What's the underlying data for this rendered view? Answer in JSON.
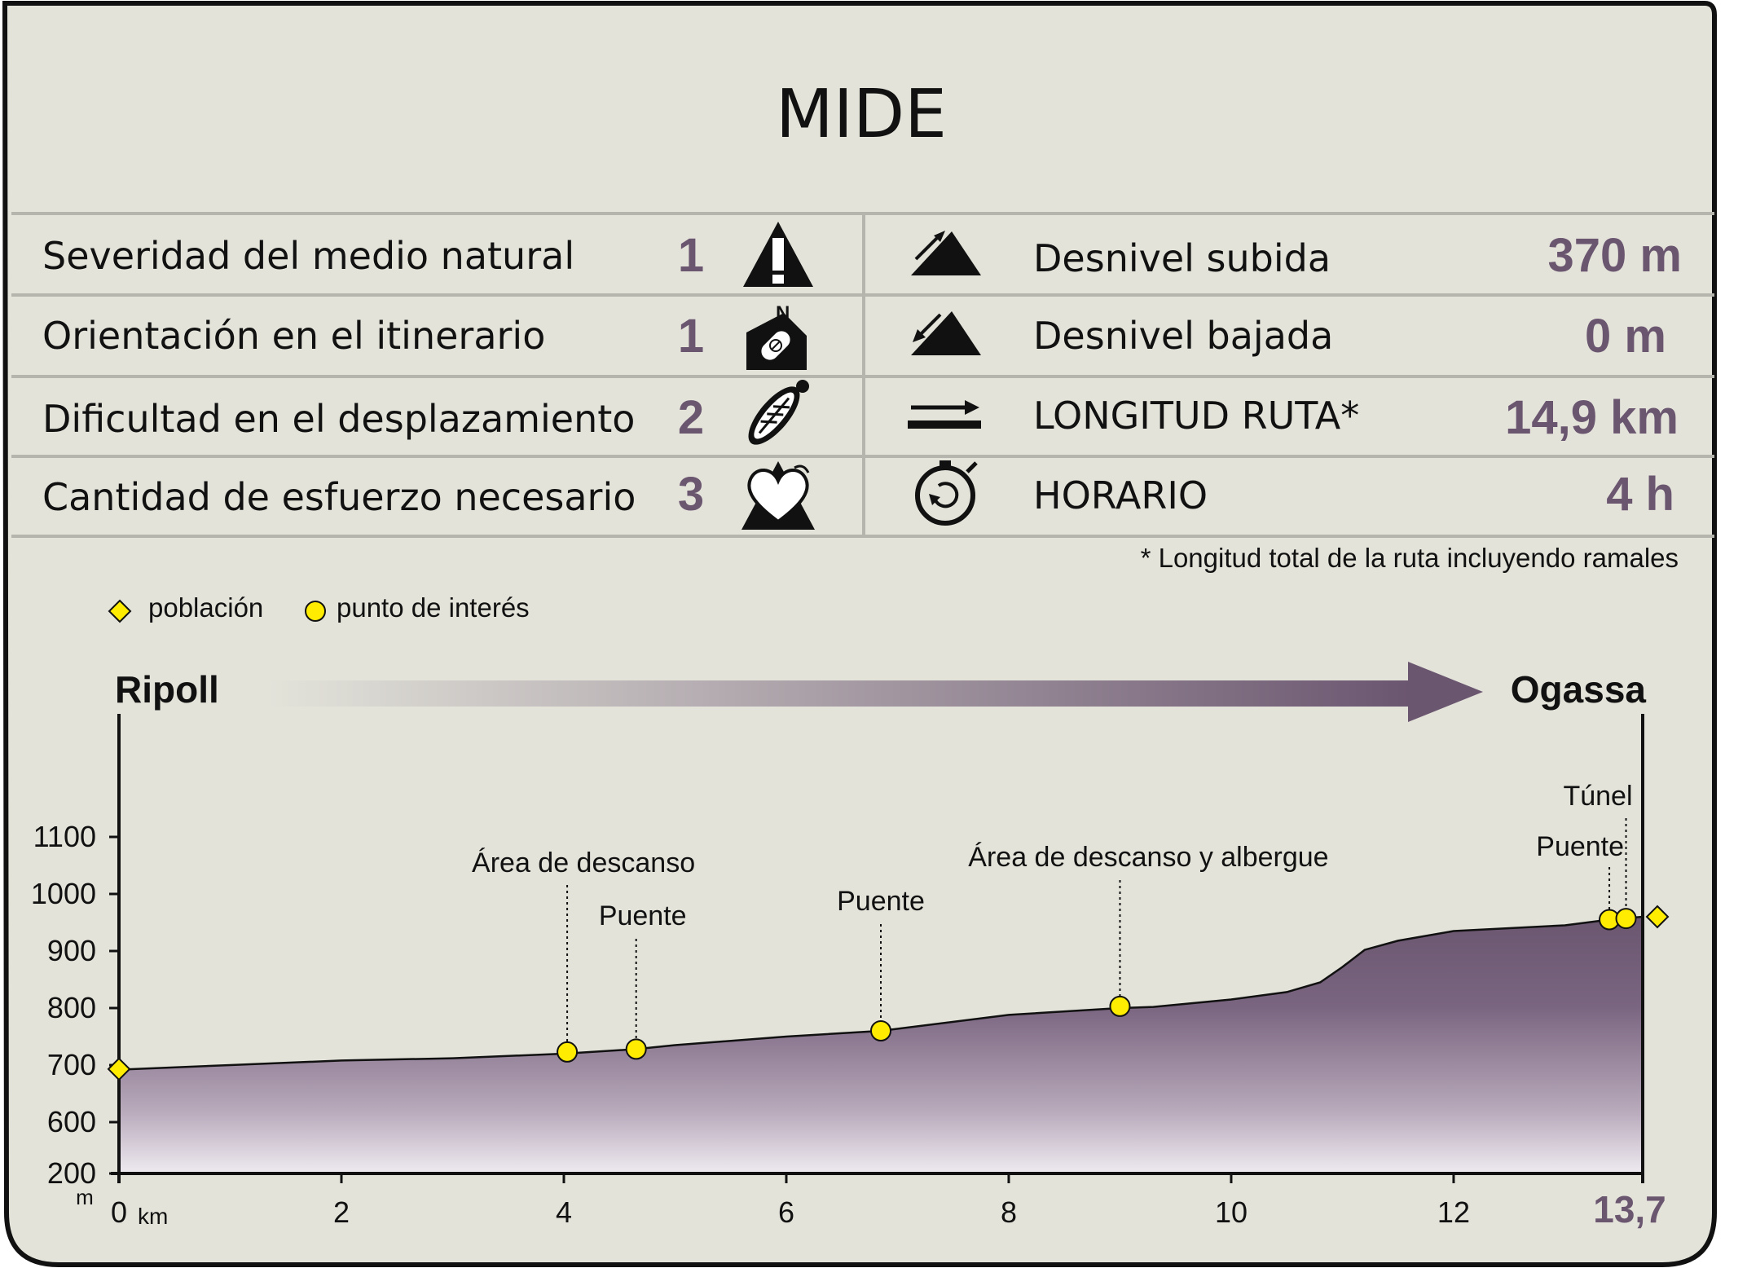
{
  "title": "MIDE",
  "mide": [
    {
      "label": "Severidad del medio natural",
      "value": "1",
      "icon": "alert-mountain-icon"
    },
    {
      "label": "Orientación en el itinerario",
      "value": "1",
      "icon": "compass-mountain-icon"
    },
    {
      "label": "Dificultad en el desplazamiento",
      "value": "2",
      "icon": "footprint-icon"
    },
    {
      "label": "Cantidad de esfuerzo necesario",
      "value": "3",
      "icon": "heart-mountain-icon"
    }
  ],
  "stats": [
    {
      "label": "Desnivel subida",
      "value": "370 m",
      "icon": "ascent-icon"
    },
    {
      "label": "Desnivel bajada",
      "value": "0 m",
      "icon": "descent-icon"
    },
    {
      "label": "LONGITUD RUTA*",
      "value": "14,9 km",
      "icon": "distance-arrow-icon"
    },
    {
      "label": "HORARIO",
      "value": "4 h",
      "icon": "stopwatch-icon"
    }
  ],
  "footnote": "* Longitud total de la ruta incluyendo ramales",
  "legend": {
    "town": "población",
    "poi": "punto de interés"
  },
  "route": {
    "start": "Ripoll",
    "end": "Ogassa"
  },
  "colors": {
    "accent": "#6b5670",
    "marker": "#ffec00",
    "panel": "#e3e3da"
  },
  "chart_data": {
    "type": "area",
    "x_unit": "km",
    "y_unit": "m",
    "x_ticks": [
      "0",
      "2",
      "4",
      "6",
      "8",
      "10",
      "12"
    ],
    "x_end_label": "13,7",
    "y_ticks": [
      "200",
      "600",
      "700",
      "800",
      "900",
      "1000",
      "1100"
    ],
    "y_axis_note": "Vertical axis is broken between 200 and 600 m",
    "profile": {
      "x": [
        0,
        1,
        2,
        3,
        4,
        4.65,
        5,
        6,
        6.85,
        8,
        9,
        9.3,
        10,
        10.5,
        10.8,
        11,
        11.2,
        11.5,
        12,
        13,
        13.4,
        13.7
      ],
      "y": [
        692,
        700,
        708,
        712,
        720,
        728,
        735,
        750,
        760,
        788,
        800,
        802,
        815,
        828,
        845,
        872,
        902,
        918,
        935,
        945,
        955,
        960
      ]
    },
    "towns": [
      {
        "name": "Ripoll",
        "km": 0,
        "elev": 693
      },
      {
        "name": "Ogassa",
        "km": 13.7,
        "elev": 960
      }
    ],
    "points_of_interest": [
      {
        "label": "Área de descanso",
        "km": 4.03,
        "elev": 723
      },
      {
        "label": "Puente",
        "km": 4.65,
        "elev": 728
      },
      {
        "label": "Puente",
        "km": 6.85,
        "elev": 760
      },
      {
        "label": "Área de descanso y albergue",
        "km": 9.0,
        "elev": 803
      },
      {
        "label": "Puente",
        "km": 13.4,
        "elev": 955
      },
      {
        "label": "Túnel",
        "km": 13.55,
        "elev": 957
      }
    ]
  }
}
